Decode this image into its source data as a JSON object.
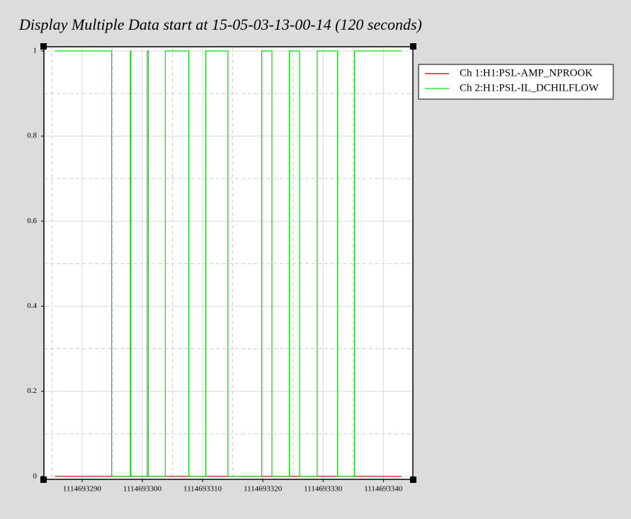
{
  "chart_data": {
    "type": "line",
    "title": "Display Multiple Data start at 15-05-03-13-00-14 (120 seconds)",
    "series": [
      {
        "name": "Ch 1:H1:PSL-AMP_NPROOK",
        "color": "#c00000",
        "x": [
          1114693285.5,
          1114693343.0
        ],
        "values": [
          0,
          0
        ]
      },
      {
        "name": "Ch 2:H1:PSL-IL_DCHILFLOW",
        "color": "#00e000",
        "x": [
          1114693285.5,
          1114693294.9,
          1114693294.9,
          1114693298.0,
          1114693298.0,
          1114693298.1,
          1114693298.1,
          1114693300.8,
          1114693300.8,
          1114693301.0,
          1114693301.0,
          1114693303.8,
          1114693303.8,
          1114693307.7,
          1114693307.7,
          1114693310.5,
          1114693310.5,
          1114693314.2,
          1114693314.2,
          1114693319.8,
          1114693319.8,
          1114693321.5,
          1114693321.5,
          1114693324.4,
          1114693324.4,
          1114693326.1,
          1114693326.1,
          1114693329.0,
          1114693329.0,
          1114693332.4,
          1114693332.4,
          1114693335.2,
          1114693335.2,
          1114693343.0
        ],
        "values": [
          1,
          1,
          0,
          0,
          1,
          1,
          0,
          0,
          1,
          1,
          0,
          0,
          1,
          1,
          0,
          0,
          1,
          1,
          0,
          0,
          1,
          1,
          0,
          0,
          1,
          1,
          0,
          0,
          1,
          1,
          0,
          0,
          1,
          1
        ]
      }
    ],
    "xlim": [
      1114693283.66,
      1114693344.9
    ],
    "xticks": [
      1114693290,
      1114693300,
      1114693310,
      1114693320,
      1114693330,
      1114693340
    ],
    "x_minor_ticks": [
      1114693285,
      1114693295,
      1114693305,
      1114693315,
      1114693325,
      1114693335
    ],
    "ylim": [
      -0.007,
      1.01
    ],
    "yticks": [
      0,
      0.2,
      0.4,
      0.6,
      0.8,
      1
    ],
    "y_minor_ticks": [
      0.1,
      0.3,
      0.5,
      0.7,
      0.9
    ],
    "grid": true,
    "legend": "right"
  }
}
